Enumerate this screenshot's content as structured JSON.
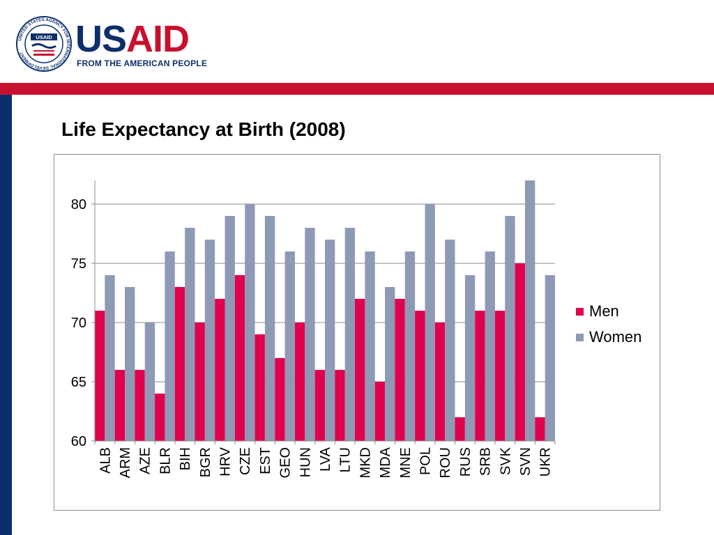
{
  "header": {
    "logo_seal_text": "UNITED STATES AGENCY FOR INTERNATIONAL DEVELOPMENT",
    "seal_badge": "USAID",
    "brand_us": "US",
    "brand_aid": "AID",
    "tagline": "FROM THE AMERICAN PEOPLE"
  },
  "colors": {
    "brand_blue": "#0c2f6b",
    "brand_red": "#c8102e",
    "men": "#e0004d",
    "women": "#8e9ab5"
  },
  "chart_data": {
    "type": "bar",
    "title": "Life Expectancy at Birth (2008)",
    "xlabel": "",
    "ylabel": "",
    "ylim": [
      60,
      82
    ],
    "yticks": [
      60,
      65,
      70,
      75,
      80
    ],
    "grid": true,
    "legend_position": "right",
    "categories": [
      "ALB",
      "ARM",
      "AZE",
      "BLR",
      "BIH",
      "BGR",
      "HRV",
      "CZE",
      "EST",
      "GEO",
      "HUN",
      "LVA",
      "LTU",
      "MKD",
      "MDA",
      "MNE",
      "POL",
      "ROU",
      "RUS",
      "SRB",
      "SVK",
      "SVN",
      "UKR"
    ],
    "series": [
      {
        "name": "Men",
        "values": [
          71,
          66,
          66,
          64,
          73,
          70,
          72,
          74,
          69,
          67,
          70,
          66,
          66,
          72,
          65,
          72,
          71,
          70,
          62,
          71,
          71,
          75,
          62
        ]
      },
      {
        "name": "Women",
        "values": [
          74,
          73,
          70,
          76,
          78,
          77,
          79,
          80,
          79,
          76,
          78,
          77,
          78,
          76,
          73,
          76,
          80,
          77,
          74,
          76,
          79,
          82,
          74
        ]
      }
    ]
  }
}
